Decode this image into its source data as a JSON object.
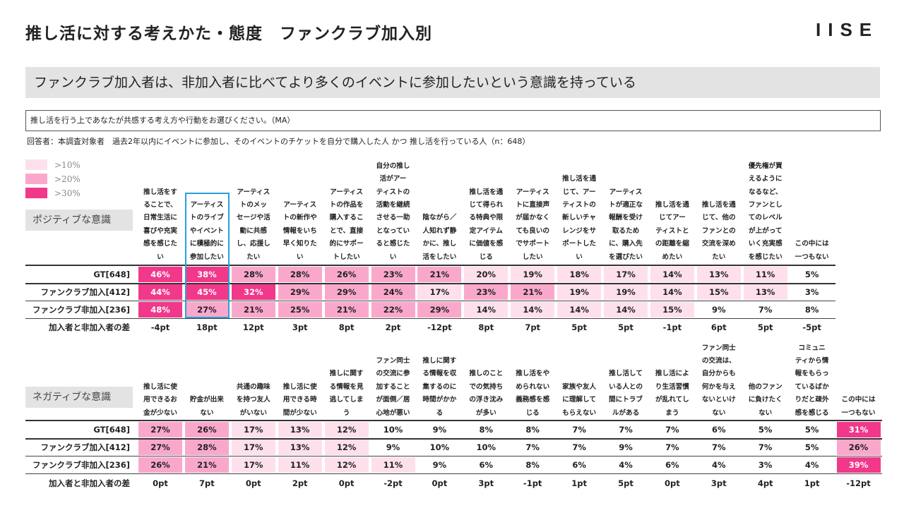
{
  "title": "推し活に対する考えかた・態度　ファンクラブ加入別",
  "logo": "IISE",
  "headline": "ファンクラブ加入者は、非加入者に比べてより多くのイベントに参加したいという意識を持っている",
  "question": "推し活を行う上であなたが共感する考え方や行動をお選びください。（MA）",
  "respondents": "回答者：本調査対象者　過去2年以内にイベントに参加し、そのイベントのチケットを自分で購入した人 かつ 推し活を行っている人（n：648）",
  "legend": [
    {
      "label": ">10%",
      "color": "#fde0ec"
    },
    {
      "label": ">20%",
      "color": "#f9a8cc"
    },
    {
      "label": ">30%",
      "color": "#f1388a"
    }
  ],
  "row_labels": [
    "GT[648]",
    "ファンクラブ加入[412]",
    "ファンクラブ非加入[236]",
    "加入者と非加入者の差"
  ],
  "positive": {
    "label": "ポジティブな意識",
    "headers": [
      "推し活をす\nることで、\n日常生活に\n喜びや充実\n感を感じた\nい",
      "アーティス\nトのライブ\nやイベント\nに積極的に\n参加したい",
      "アーティス\nトのメッ\nセージや活\n動に共感\nし、応援し\nたい",
      "アーティス\nトの新作や\n情報をいち\n早く知りた\nい",
      "アーティス\nトの作品を\n購入するこ\nとで、直接\n的にサポー\nトしたい",
      "自分の推し\n活がアー\nティストの\n活動を継続\nさせる一助\nとなってい\nると感じた\nい",
      "陰ながら／\n人知れず静\nかに、推し\n活をしたい",
      "推し活を通\nじて得られ\nる特典や限\n定アイテム\nに価値を感\nじる",
      "アーティス\nトに直接声\nが届かなく\nても良いの\nでサポート\nしたい",
      "推し活を通\nじて、アー\nティストの\n新しいチャ\nレンジをサ\nポートした\nい",
      "アーティス\nトが適正な\n報酬を受け\n取るため\nに、購入先\nを選びたい",
      "推し活を通\nじてアー\nティストと\nの距離を縮\nめたい",
      "推し活を通\nじて、他の\nファンとの\n交流を深め\nたい",
      "優先権が買\nえるように\nなるなど、\nファンとし\nてのレベル\nが上がって\nいく充実感\nを感じたい",
      "この中には\n一つもない"
    ],
    "rows": [
      [
        46,
        38,
        28,
        28,
        26,
        23,
        21,
        20,
        19,
        18,
        17,
        14,
        13,
        11,
        5
      ],
      [
        44,
        45,
        32,
        29,
        29,
        24,
        17,
        23,
        21,
        19,
        19,
        14,
        15,
        13,
        3
      ],
      [
        48,
        27,
        21,
        25,
        21,
        22,
        29,
        14,
        14,
        14,
        14,
        15,
        9,
        7,
        8
      ]
    ],
    "diff": [
      "-4pt",
      "18pt",
      "12pt",
      "3pt",
      "8pt",
      "2pt",
      "-12pt",
      "8pt",
      "7pt",
      "5pt",
      "5pt",
      "-1pt",
      "6pt",
      "5pt",
      "-5pt"
    ]
  },
  "negative": {
    "label": "ネガティブな意識",
    "headers": [
      "推し活に使\n用できるお\n金が少ない",
      "貯金が出来\nない",
      "共通の趣味\nを持つ友人\nがいない",
      "推し活に使\n用できる時\n間が少ない",
      "推しに関す\nる情報を見\n逃してしま\nう",
      "ファン同士\nの交流に参\n加すること\nが面倒／居\n心地が悪い",
      "推しに関す\nる情報を収\n集するのに\n時間がかか\nる",
      "推しのこと\nでの気持ち\nの浮き沈み\nが多い",
      "推し活をや\nめられない\n義務感を感\nじる",
      "家族や友人\nに理解して\nもらえない",
      "推し活して\nいる人との\n間にトラブ\nルがある",
      "推し活によ\nり生活習慣\nが乱れてし\nまう",
      "ファン同士\nの交流は、\n自分からも\n何かを与え\nないといけ\nない",
      "他のファン\nに負けたく\nない",
      "コミュニ\nティから情\n報をもらっ\nているばか\nりだと疎外\n感を感じる",
      "この中には\n一つもない"
    ],
    "rows": [
      [
        27,
        26,
        17,
        13,
        12,
        10,
        9,
        8,
        8,
        7,
        7,
        7,
        6,
        5,
        5,
        31
      ],
      [
        27,
        28,
        17,
        13,
        12,
        9,
        10,
        10,
        7,
        7,
        9,
        7,
        7,
        7,
        5,
        26
      ],
      [
        26,
        21,
        17,
        11,
        12,
        11,
        9,
        6,
        8,
        6,
        4,
        6,
        4,
        3,
        4,
        39
      ]
    ],
    "diff": [
      "0pt",
      "7pt",
      "0pt",
      "2pt",
      "0pt",
      "-2pt",
      "0pt",
      "3pt",
      "-1pt",
      "1pt",
      "5pt",
      "0pt",
      "3pt",
      "4pt",
      "1pt",
      "-12pt"
    ]
  }
}
